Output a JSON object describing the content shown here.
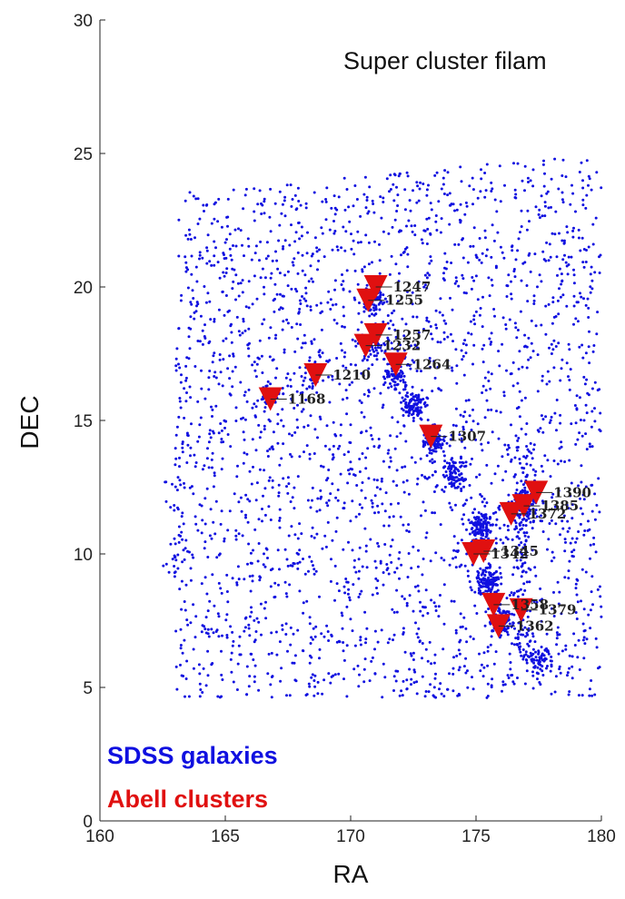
{
  "chart_data": {
    "type": "scatter",
    "title": "Super cluster filam",
    "xlabel": "RA",
    "ylabel": "DEC",
    "xlim": [
      160,
      180
    ],
    "ylim": [
      0,
      30
    ],
    "xticks": [
      "160",
      "165",
      "170",
      "175",
      "180"
    ],
    "yticks": [
      "0",
      "5",
      "10",
      "15",
      "20",
      "25",
      "30"
    ],
    "grid": false,
    "legend_position": "bottom-left",
    "series": [
      {
        "name": "SDSS galaxies",
        "color": "#1010e0",
        "marker": "dot",
        "note_points": "dense field of ~4000 galaxies spanning RA 162.5-180, DEC 4.5-25.5"
      },
      {
        "name": "Abell clusters",
        "color": "#e01010",
        "marker": "triangle-down",
        "points": [
          {
            "label": "1168",
            "x": 166.8,
            "y": 15.8
          },
          {
            "label": "1210",
            "x": 168.6,
            "y": 16.7
          },
          {
            "label": "1247",
            "x": 171.0,
            "y": 20.0
          },
          {
            "label": "1255",
            "x": 170.7,
            "y": 19.5
          },
          {
            "label": "1257",
            "x": 171.0,
            "y": 18.2
          },
          {
            "label": "1232",
            "x": 170.6,
            "y": 17.8
          },
          {
            "label": "1264",
            "x": 171.8,
            "y": 17.1
          },
          {
            "label": "1307",
            "x": 173.2,
            "y": 14.4
          },
          {
            "label": "1342",
            "x": 174.9,
            "y": 10.0
          },
          {
            "label": "1345",
            "x": 175.3,
            "y": 10.1
          },
          {
            "label": "1372",
            "x": 176.4,
            "y": 11.5
          },
          {
            "label": "1385",
            "x": 176.9,
            "y": 11.8
          },
          {
            "label": "1390",
            "x": 177.4,
            "y": 12.3
          },
          {
            "label": "1358",
            "x": 175.7,
            "y": 8.1
          },
          {
            "label": "1379",
            "x": 176.8,
            "y": 7.9
          },
          {
            "label": "1362",
            "x": 175.9,
            "y": 7.3
          }
        ]
      }
    ]
  }
}
